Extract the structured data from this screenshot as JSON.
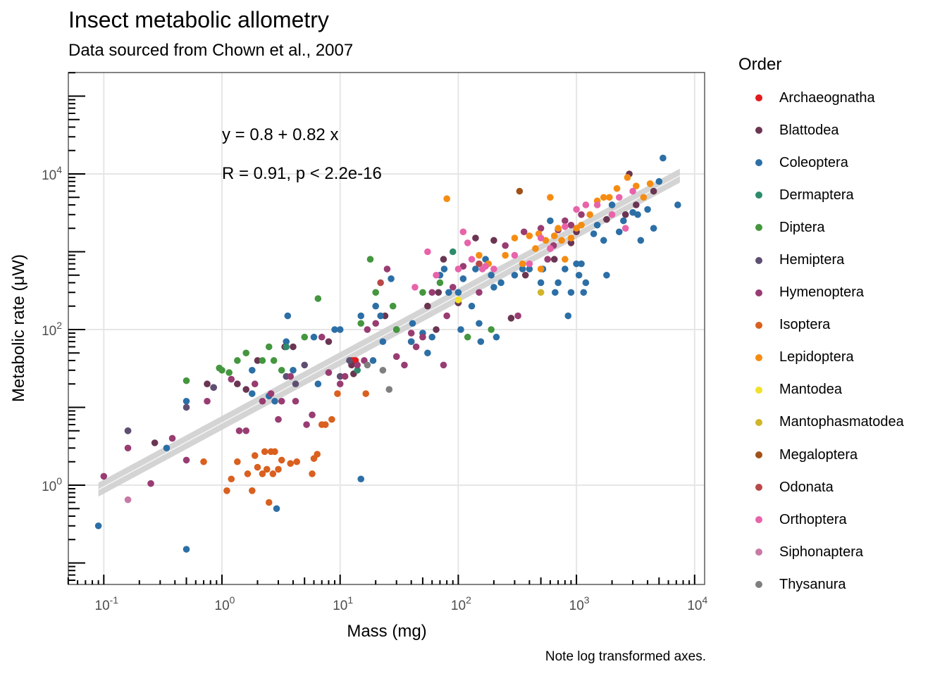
{
  "chart_data": {
    "type": "scatter",
    "title": "Insect metabolic allometry",
    "subtitle": "Data sourced from Chown et al., 2007",
    "xlabel": "Mass (mg)",
    "ylabel": "Metabolic rate (μW)",
    "caption": "Note log transformed axes.",
    "x_scale": "log10",
    "y_scale": "log10",
    "xlim": [
      0.05,
      12000
    ],
    "ylim": [
      0.06,
      200000
    ],
    "x_ticks": [
      {
        "base": "10",
        "exp": "-1",
        "value": 0.1
      },
      {
        "base": "10",
        "exp": "0",
        "value": 1
      },
      {
        "base": "10",
        "exp": "1",
        "value": 10
      },
      {
        "base": "10",
        "exp": "2",
        "value": 100
      },
      {
        "base": "10",
        "exp": "3",
        "value": 1000
      },
      {
        "base": "10",
        "exp": "4",
        "value": 10000
      }
    ],
    "y_ticks": [
      {
        "base": "10",
        "exp": "0",
        "value": 1
      },
      {
        "base": "10",
        "exp": "2",
        "value": 100
      },
      {
        "base": "10",
        "exp": "4",
        "value": 10000
      }
    ],
    "grid": true,
    "legend_title": "Order",
    "legend_position": "right",
    "annotations": {
      "equation": "y = 0.8 + 0.82 x",
      "correlation": "R = 0.91, p < 2.2e-16"
    },
    "fit": {
      "type": "linear (log-log)",
      "intercept_log10": 0.8,
      "slope": 0.82
    },
    "series": [
      {
        "name": "Archaeognatha",
        "color": "#e31a1c",
        "points": [
          [
            12.5,
            40
          ],
          [
            13,
            40
          ],
          [
            13.5,
            40
          ]
        ]
      },
      {
        "name": "Blattodea",
        "color": "#6a3552",
        "points": [
          [
            0.16,
            5
          ],
          [
            0.27,
            3.5
          ],
          [
            0.75,
            20
          ],
          [
            0.85,
            18
          ],
          [
            1.35,
            20
          ],
          [
            1.6,
            17
          ],
          [
            2,
            40
          ],
          [
            3.4,
            60
          ],
          [
            4,
            60
          ],
          [
            8,
            70
          ],
          [
            12.5,
            35
          ],
          [
            13,
            27
          ],
          [
            24,
            150
          ],
          [
            40,
            70
          ],
          [
            55,
            200
          ],
          [
            65,
            100
          ],
          [
            68,
            300
          ],
          [
            75,
            800
          ],
          [
            100,
            220
          ],
          [
            140,
            1500
          ],
          [
            200,
            1400
          ],
          [
            280,
            140
          ],
          [
            370,
            500
          ],
          [
            650,
            800
          ],
          [
            900,
            1300
          ],
          [
            1000,
            1800
          ],
          [
            1800,
            2600
          ],
          [
            2600,
            3000
          ],
          [
            2800,
            10000
          ],
          [
            3200,
            4000
          ],
          [
            4500,
            6000
          ]
        ]
      },
      {
        "name": "Coleoptera",
        "color": "#2c6fa6",
        "points": [
          [
            0.09,
            0.3
          ],
          [
            0.34,
            3
          ],
          [
            0.5,
            0.15
          ],
          [
            0.5,
            12
          ],
          [
            1.8,
            30
          ],
          [
            1.8,
            15
          ],
          [
            2.5,
            14
          ],
          [
            2.8,
            12
          ],
          [
            2.9,
            0.5
          ],
          [
            3.5,
            70
          ],
          [
            3.6,
            150
          ],
          [
            4,
            30
          ],
          [
            6,
            80
          ],
          [
            6.5,
            20
          ],
          [
            9,
            100
          ],
          [
            10,
            100
          ],
          [
            15,
            1.2
          ],
          [
            15,
            150
          ],
          [
            19,
            40
          ],
          [
            20,
            200
          ],
          [
            22,
            150
          ],
          [
            23,
            70
          ],
          [
            27,
            450
          ],
          [
            30,
            100
          ],
          [
            40,
            70
          ],
          [
            41,
            120
          ],
          [
            50,
            90
          ],
          [
            55,
            50
          ],
          [
            60,
            80
          ],
          [
            70,
            500
          ],
          [
            76,
            600
          ],
          [
            83,
            300
          ],
          [
            100,
            300
          ],
          [
            105,
            100
          ],
          [
            110,
            450
          ],
          [
            130,
            200
          ],
          [
            140,
            600
          ],
          [
            150,
            120
          ],
          [
            155,
            70
          ],
          [
            170,
            800
          ],
          [
            190,
            500
          ],
          [
            200,
            350
          ],
          [
            210,
            80
          ],
          [
            230,
            400
          ],
          [
            300,
            500
          ],
          [
            350,
            600
          ],
          [
            400,
            600
          ],
          [
            500,
            400
          ],
          [
            520,
            600
          ],
          [
            600,
            2500
          ],
          [
            660,
            300
          ],
          [
            700,
            400
          ],
          [
            800,
            600
          ],
          [
            850,
            150
          ],
          [
            900,
            300
          ],
          [
            1000,
            700
          ],
          [
            1050,
            500
          ],
          [
            1100,
            700
          ],
          [
            1150,
            300
          ],
          [
            1200,
            400
          ],
          [
            1400,
            1700
          ],
          [
            1500,
            2200
          ],
          [
            1700,
            1400
          ],
          [
            1800,
            500
          ],
          [
            2000,
            4000
          ],
          [
            2300,
            1800
          ],
          [
            2500,
            2500
          ],
          [
            3000,
            3200
          ],
          [
            3300,
            3000
          ],
          [
            3500,
            1400
          ],
          [
            4000,
            3500
          ],
          [
            4500,
            2000
          ],
          [
            5000,
            8000
          ],
          [
            5400,
            16000
          ],
          [
            7200,
            4000
          ]
        ]
      },
      {
        "name": "Dermaptera",
        "color": "#2e8b6a",
        "points": [
          [
            3.5,
            60
          ],
          [
            14,
            30
          ],
          [
            90,
            1000
          ]
        ]
      },
      {
        "name": "Diptera",
        "color": "#44963f",
        "points": [
          [
            0.5,
            22
          ],
          [
            0.95,
            32
          ],
          [
            1,
            30
          ],
          [
            1.15,
            28
          ],
          [
            1.35,
            40
          ],
          [
            1.6,
            50
          ],
          [
            2.2,
            40
          ],
          [
            2.5,
            60
          ],
          [
            2.75,
            40
          ],
          [
            3.2,
            30
          ],
          [
            5,
            80
          ],
          [
            6.5,
            250
          ],
          [
            15,
            120
          ],
          [
            18,
            800
          ],
          [
            20,
            300
          ],
          [
            28,
            200
          ],
          [
            30,
            100
          ],
          [
            50,
            300
          ],
          [
            70,
            400
          ],
          [
            120,
            80
          ],
          [
            190,
            100
          ]
        ]
      },
      {
        "name": "Hemiptera",
        "color": "#5e4f72",
        "points": [
          [
            0.16,
            5
          ],
          [
            0.5,
            10
          ],
          [
            0.85,
            18
          ],
          [
            3.5,
            25
          ],
          [
            4.2,
            20
          ],
          [
            5,
            35
          ],
          [
            10,
            25
          ],
          [
            12,
            40
          ]
        ]
      },
      {
        "name": "Hymenoptera",
        "color": "#983c72",
        "points": [
          [
            0.1,
            1.3
          ],
          [
            0.16,
            3
          ],
          [
            0.25,
            1.05
          ],
          [
            0.38,
            4
          ],
          [
            0.5,
            2.1
          ],
          [
            0.75,
            12
          ],
          [
            1.2,
            23
          ],
          [
            1.4,
            5
          ],
          [
            1.6,
            5
          ],
          [
            1.9,
            20
          ],
          [
            2.2,
            12
          ],
          [
            2.6,
            15
          ],
          [
            3,
            7
          ],
          [
            3.2,
            12
          ],
          [
            3.8,
            25
          ],
          [
            4.2,
            12
          ],
          [
            5.2,
            6
          ],
          [
            5.8,
            8
          ],
          [
            7,
            80
          ],
          [
            8,
            28
          ],
          [
            10,
            20
          ],
          [
            11,
            25
          ],
          [
            14,
            35
          ],
          [
            16,
            40
          ],
          [
            17,
            100
          ],
          [
            20,
            120
          ],
          [
            25,
            600
          ],
          [
            30,
            45
          ],
          [
            35,
            35
          ],
          [
            40,
            90
          ],
          [
            44,
            60
          ],
          [
            50,
            80
          ],
          [
            60,
            300
          ],
          [
            75,
            35
          ],
          [
            80,
            150
          ],
          [
            90,
            350
          ],
          [
            110,
            650
          ],
          [
            150,
            300
          ],
          [
            250,
            1200
          ],
          [
            320,
            150
          ],
          [
            360,
            1800
          ],
          [
            500,
            2000
          ],
          [
            570,
            800
          ],
          [
            640,
            1200
          ],
          [
            700,
            1900
          ],
          [
            800,
            2500
          ],
          [
            900,
            2200
          ],
          [
            1100,
            3000
          ]
        ]
      },
      {
        "name": "Isoptera",
        "color": "#d9601f",
        "points": [
          [
            0.7,
            2
          ],
          [
            1.1,
            0.85
          ],
          [
            1.2,
            1.2
          ],
          [
            1.35,
            2
          ],
          [
            1.65,
            1.4
          ],
          [
            1.8,
            0.85
          ],
          [
            1.9,
            2.4
          ],
          [
            2,
            1.7
          ],
          [
            2.2,
            1.4
          ],
          [
            2.3,
            2.7
          ],
          [
            2.4,
            1.6
          ],
          [
            2.5,
            0.6
          ],
          [
            2.6,
            2.7
          ],
          [
            2.7,
            1.4
          ],
          [
            2.8,
            2.7
          ],
          [
            3,
            1.6
          ],
          [
            3.2,
            2.1
          ],
          [
            3.8,
            1.9
          ],
          [
            4.3,
            2
          ],
          [
            5.8,
            1.4
          ],
          [
            6,
            2.2
          ],
          [
            6.4,
            2.5
          ],
          [
            7,
            6
          ],
          [
            7.5,
            6
          ],
          [
            8.5,
            7
          ],
          [
            9.5,
            15
          ],
          [
            16.5,
            15
          ]
        ]
      },
      {
        "name": "Lepidoptera",
        "color": "#f58c12",
        "points": [
          [
            80,
            4800
          ],
          [
            150,
            900
          ],
          [
            180,
            700
          ],
          [
            250,
            900
          ],
          [
            300,
            1500
          ],
          [
            350,
            700
          ],
          [
            400,
            1600
          ],
          [
            450,
            1100
          ],
          [
            480,
            1700
          ],
          [
            500,
            600
          ],
          [
            550,
            1400
          ],
          [
            600,
            5000
          ],
          [
            650,
            1600
          ],
          [
            700,
            2000
          ],
          [
            750,
            1400
          ],
          [
            800,
            800
          ],
          [
            900,
            1500
          ],
          [
            1000,
            2000
          ],
          [
            1100,
            2200
          ],
          [
            1300,
            3000
          ],
          [
            1500,
            4500
          ],
          [
            1700,
            5000
          ],
          [
            1900,
            5000
          ],
          [
            2200,
            6500
          ],
          [
            2700,
            9000
          ],
          [
            3200,
            7000
          ],
          [
            3700,
            5000
          ],
          [
            4200,
            7500
          ]
        ]
      },
      {
        "name": "Mantodea",
        "color": "#f1e12a",
        "points": [
          [
            100,
            240
          ]
        ]
      },
      {
        "name": "Mantophasmatodea",
        "color": "#d1b52a",
        "points": [
          [
            500,
            300
          ]
        ]
      },
      {
        "name": "Megaloptera",
        "color": "#a0521a",
        "points": [
          [
            330,
            6000
          ]
        ]
      },
      {
        "name": "Odonata",
        "color": "#b94848",
        "points": [
          [
            22,
            400
          ],
          [
            150,
            700
          ]
        ]
      },
      {
        "name": "Orthoptera",
        "color": "#e863aa",
        "points": [
          [
            43,
            350
          ],
          [
            55,
            1000
          ],
          [
            65,
            500
          ],
          [
            100,
            600
          ],
          [
            110,
            1800
          ],
          [
            120,
            1300
          ],
          [
            130,
            800
          ],
          [
            160,
            600
          ],
          [
            170,
            650
          ],
          [
            200,
            600
          ],
          [
            300,
            900
          ],
          [
            400,
            700
          ],
          [
            500,
            1500
          ],
          [
            600,
            1100
          ],
          [
            800,
            2100
          ],
          [
            1000,
            3500
          ],
          [
            1200,
            4000
          ],
          [
            1500,
            4000
          ],
          [
            2000,
            3000
          ],
          [
            2300,
            5000
          ],
          [
            2600,
            2000
          ],
          [
            3000,
            6000
          ]
        ]
      },
      {
        "name": "Siphonaptera",
        "color": "#c87aa6",
        "points": [
          [
            0.16,
            0.65
          ]
        ]
      },
      {
        "name": "Thysanura",
        "color": "#7f7f7f",
        "points": [
          [
            17,
            35
          ],
          [
            23,
            30
          ],
          [
            26,
            17
          ]
        ]
      }
    ]
  }
}
